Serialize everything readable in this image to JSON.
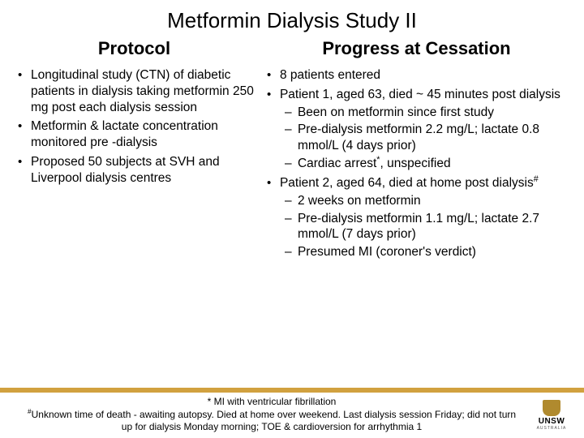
{
  "title": "Metformin Dialysis Study II",
  "columns": {
    "left": {
      "heading": "Protocol",
      "bullets": [
        "Longitudinal study (CTN) of diabetic patients in dialysis taking metformin 250 mg post each dialysis session",
        "Metformin & lactate concentration monitored pre -dialysis",
        "Proposed 50 subjects at SVH and Liverpool dialysis centres"
      ]
    },
    "right": {
      "heading": "Progress at Cessation",
      "b1": "8 patients entered",
      "b2": "Patient 1, aged 63, died ~ 45 minutes post dialysis",
      "b2subs": [
        "Been on metformin since first study",
        "Pre-dialysis metformin 2.2 mg/L; lactate 0.8 mmol/L (4 days prior)"
      ],
      "b2sub3_pre": "Cardiac arrest",
      "b2sub3_sup": "*",
      "b2sub3_post": ", unspecified",
      "b3_pre": "Patient 2, aged 64, died at home post dialysis",
      "b3_sup": "#",
      "b3subs": [
        "2 weeks on metformin",
        "Pre-dialysis metformin 1.1 mg/L; lactate 2.7 mmol/L (7 days prior)",
        "Presumed MI (coroner's verdict)"
      ]
    }
  },
  "footnote": {
    "line1": "* MI with ventricular fibrillation",
    "line2_sup": "#",
    "line2": "Unknown time of death - awaiting autopsy.  Died at home over weekend.  Last dialysis session Friday; did not turn up for dialysis Monday morning; TOE & cardioversion for arrhythmia 1"
  },
  "logo": {
    "text": "UNSW",
    "sub": "AUSTRALIA"
  },
  "colors": {
    "accent_bar": "#d1a13f",
    "text": "#000000",
    "bg": "#ffffff"
  }
}
